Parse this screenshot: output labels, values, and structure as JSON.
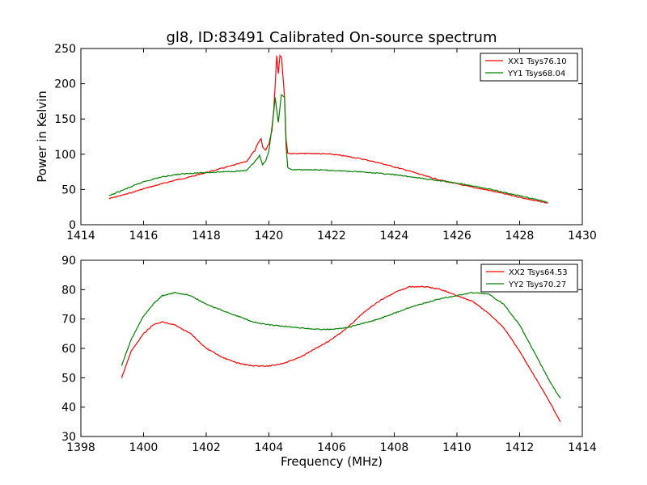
{
  "chart_data": [
    {
      "type": "line",
      "title": "gl8, ID:83491 Calibrated On-source spectrum",
      "xlabel": "",
      "ylabel": "Power in Kelvin",
      "xlim": [
        1414,
        1430
      ],
      "ylim": [
        0,
        250
      ],
      "xticks": [
        1414,
        1416,
        1418,
        1420,
        1422,
        1424,
        1426,
        1428,
        1430
      ],
      "yticks": [
        0,
        50,
        100,
        150,
        200,
        250
      ],
      "legend_position": "top-right",
      "grid": false,
      "series": [
        {
          "name": "XX1 Tsys76.10",
          "color": "#ff0000",
          "x": [
            1414.9,
            1415.5,
            1416.0,
            1416.5,
            1417.0,
            1417.5,
            1418.0,
            1418.5,
            1419.0,
            1419.3,
            1419.45,
            1419.55,
            1419.65,
            1419.75,
            1419.8,
            1419.9,
            1420.0,
            1420.1,
            1420.15,
            1420.2,
            1420.25,
            1420.3,
            1420.35,
            1420.4,
            1420.45,
            1420.5,
            1420.55,
            1420.6,
            1420.7,
            1421.0,
            1421.5,
            1422.0,
            1422.5,
            1423.0,
            1423.5,
            1424.0,
            1424.5,
            1425.0,
            1425.5,
            1426.0,
            1426.5,
            1427.0,
            1427.5,
            1428.0,
            1428.5,
            1428.9
          ],
          "y": [
            37,
            44,
            51,
            57,
            63,
            68,
            74,
            80,
            86,
            90,
            100,
            105,
            115,
            122,
            110,
            106,
            115,
            135,
            160,
            200,
            240,
            215,
            240,
            238,
            210,
            180,
            120,
            102,
            101,
            101,
            101,
            100,
            97,
            93,
            88,
            82,
            76,
            69,
            63,
            58,
            53,
            49,
            44,
            39,
            34,
            31
          ]
        },
        {
          "name": "YY1 Tsys68.04",
          "color": "#008000",
          "x": [
            1414.9,
            1415.5,
            1416.0,
            1416.5,
            1417.0,
            1417.5,
            1418.0,
            1418.5,
            1419.0,
            1419.3,
            1419.5,
            1419.6,
            1419.7,
            1419.8,
            1419.9,
            1420.0,
            1420.1,
            1420.2,
            1420.3,
            1420.4,
            1420.5,
            1420.55,
            1420.6,
            1420.7,
            1421.0,
            1421.5,
            1422.0,
            1422.5,
            1423.0,
            1423.5,
            1424.0,
            1424.5,
            1425.0,
            1425.5,
            1426.0,
            1426.5,
            1427.0,
            1427.5,
            1428.0,
            1428.5,
            1428.9
          ],
          "y": [
            41,
            52,
            61,
            67,
            71,
            73,
            74,
            75,
            76,
            77,
            87,
            92,
            98,
            85,
            90,
            105,
            140,
            180,
            145,
            185,
            180,
            110,
            82,
            78,
            78,
            78,
            77,
            76,
            75,
            73,
            71,
            68,
            65,
            62,
            59,
            55,
            51,
            46,
            41,
            36,
            32
          ]
        }
      ]
    },
    {
      "type": "line",
      "title": "",
      "xlabel": "Frequency (MHz)",
      "ylabel": "",
      "xlim": [
        1398,
        1414
      ],
      "ylim": [
        30,
        90
      ],
      "xticks": [
        1398,
        1400,
        1402,
        1404,
        1406,
        1408,
        1410,
        1412,
        1414
      ],
      "yticks": [
        30,
        40,
        50,
        60,
        70,
        80,
        90
      ],
      "legend_position": "top-right",
      "grid": false,
      "series": [
        {
          "name": "XX2 Tsys64.53",
          "color": "#ff0000",
          "x": [
            1399.3,
            1399.6,
            1400.0,
            1400.3,
            1400.6,
            1401.0,
            1401.5,
            1402.0,
            1402.5,
            1403.0,
            1403.5,
            1404.0,
            1404.5,
            1405.0,
            1405.5,
            1406.0,
            1406.5,
            1407.0,
            1407.5,
            1408.0,
            1408.5,
            1409.0,
            1409.5,
            1410.0,
            1410.5,
            1411.0,
            1411.5,
            1412.0,
            1412.5,
            1413.0,
            1413.3
          ],
          "y": [
            50,
            59,
            65,
            68,
            69,
            68,
            65,
            60,
            57,
            55,
            54,
            54,
            55,
            57,
            60,
            63,
            67,
            72,
            76,
            79,
            81,
            81,
            80,
            78,
            76,
            72,
            67,
            59,
            50,
            41,
            35
          ]
        },
        {
          "name": "YY2 Tsys70.27",
          "color": "#008000",
          "x": [
            1399.3,
            1399.6,
            1400.0,
            1400.3,
            1400.6,
            1401.0,
            1401.5,
            1402.0,
            1402.5,
            1403.0,
            1403.5,
            1404.0,
            1404.5,
            1405.0,
            1405.5,
            1406.0,
            1406.5,
            1407.0,
            1407.5,
            1408.0,
            1408.5,
            1409.0,
            1409.5,
            1410.0,
            1410.5,
            1411.0,
            1411.5,
            1412.0,
            1412.5,
            1413.0,
            1413.3
          ],
          "y": [
            54,
            63,
            71,
            75,
            78,
            79,
            78,
            75,
            73,
            71,
            69,
            68,
            67.5,
            67,
            66.5,
            66.5,
            67,
            68.5,
            70,
            72,
            74,
            75.5,
            77,
            78,
            79,
            78.5,
            75,
            68,
            58,
            48,
            43
          ]
        }
      ]
    }
  ]
}
